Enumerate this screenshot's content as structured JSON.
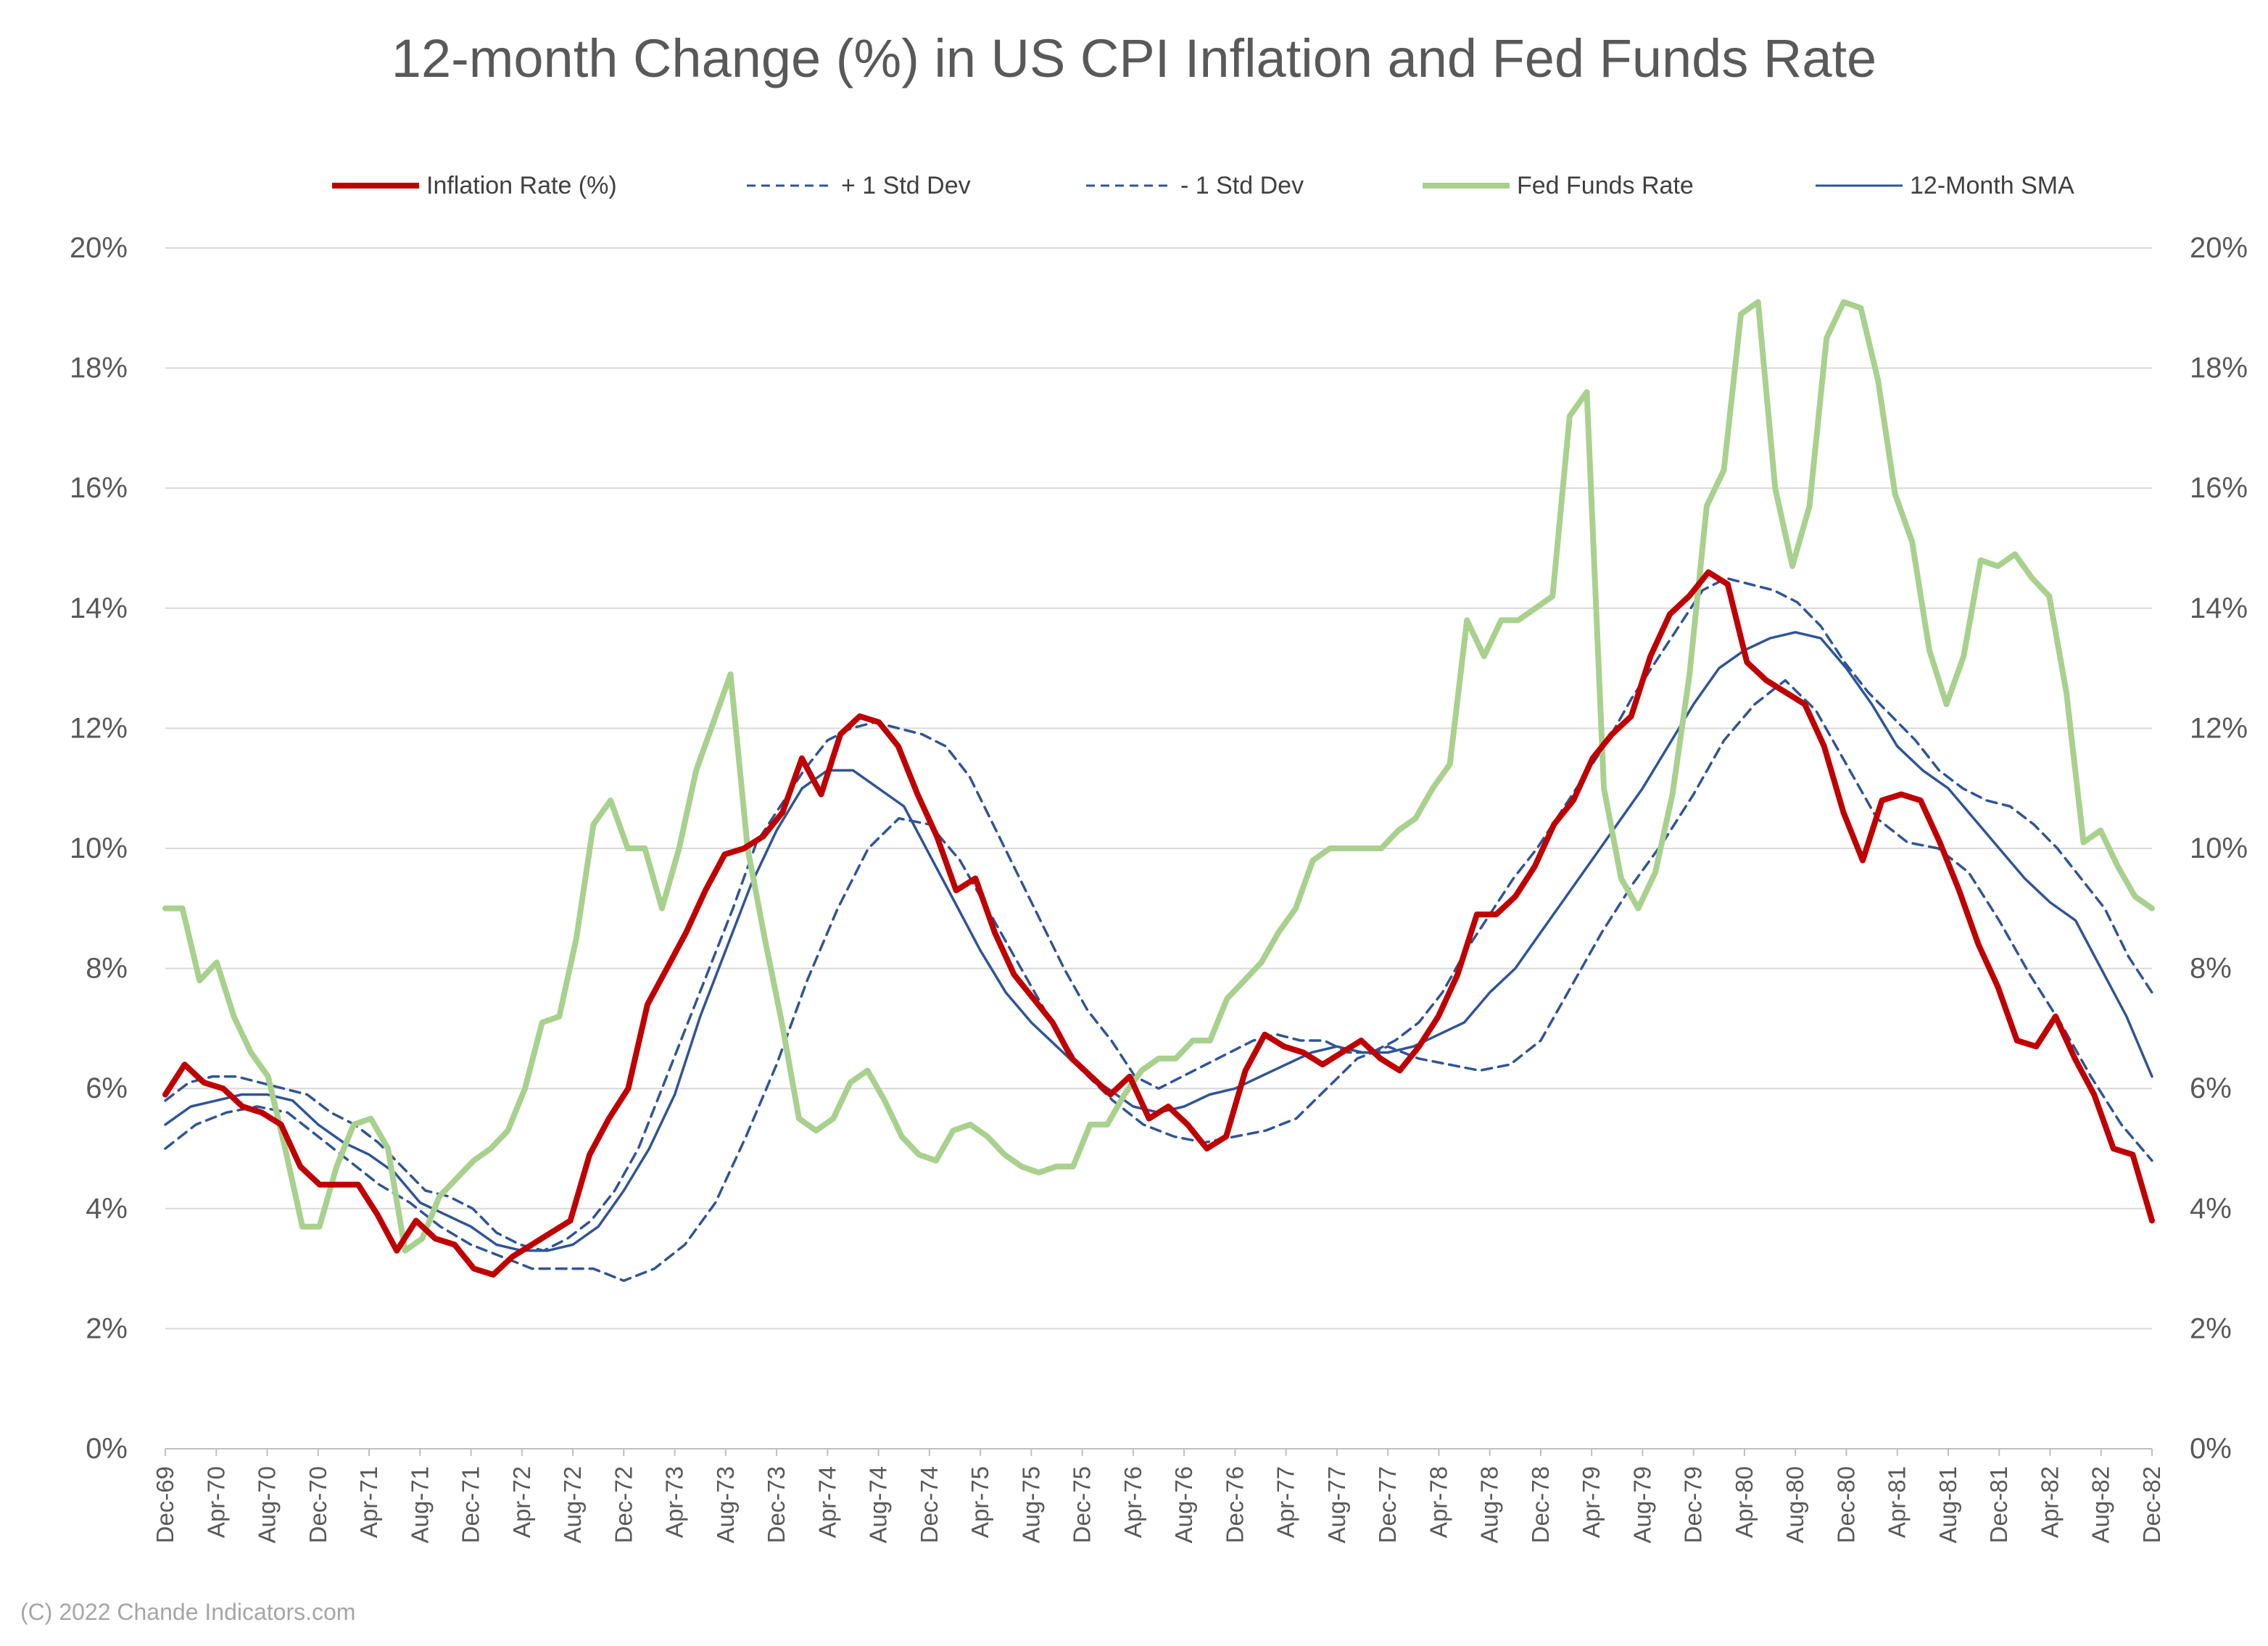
{
  "chart_data": {
    "type": "line",
    "title": "12-month Change (%) in US CPI Inflation and Fed Funds Rate",
    "xlabel": "",
    "ylabel": "",
    "ylim": [
      0,
      20
    ],
    "y_tick_labels": [
      "0%",
      "2%",
      "4%",
      "6%",
      "8%",
      "10%",
      "12%",
      "14%",
      "16%",
      "18%",
      "20%"
    ],
    "x_tick_labels": [
      "Dec-69",
      "Apr-70",
      "Aug-70",
      "Dec-70",
      "Apr-71",
      "Aug-71",
      "Dec-71",
      "Apr-72",
      "Aug-72",
      "Dec-72",
      "Apr-73",
      "Aug-73",
      "Dec-73",
      "Apr-74",
      "Aug-74",
      "Dec-74",
      "Apr-75",
      "Aug-75",
      "Dec-75",
      "Apr-76",
      "Aug-76",
      "Dec-76",
      "Apr-77",
      "Aug-77",
      "Dec-77",
      "Apr-78",
      "Aug-78",
      "Dec-78",
      "Apr-79",
      "Aug-79",
      "Dec-79",
      "Apr-80",
      "Aug-80",
      "Dec-80",
      "Apr-81",
      "Aug-81",
      "Dec-81",
      "Apr-82",
      "Aug-82",
      "Dec-82"
    ],
    "grid": true,
    "secondary_axis": true,
    "legend_position": "top",
    "series": [
      {
        "name": "Inflation Rate (%)",
        "color": "#c00000",
        "style": "solid-thick",
        "values": [
          5.9,
          6.4,
          6.1,
          6.0,
          5.7,
          5.6,
          5.4,
          4.7,
          4.4,
          4.4,
          4.4,
          3.9,
          3.3,
          3.8,
          3.5,
          3.4,
          3.0,
          2.9,
          3.2,
          3.4,
          3.6,
          3.8,
          4.9,
          5.5,
          6.0,
          7.4,
          8.0,
          8.6,
          9.3,
          9.9,
          10.0,
          10.2,
          10.6,
          11.5,
          10.9,
          11.9,
          12.2,
          12.1,
          11.7,
          10.9,
          10.2,
          9.3,
          9.5,
          8.6,
          7.9,
          7.5,
          7.1,
          6.5,
          6.2,
          5.9,
          6.2,
          5.5,
          5.7,
          5.4,
          5.0,
          5.2,
          6.3,
          6.9,
          6.7,
          6.6,
          6.4,
          6.6,
          6.8,
          6.5,
          6.3,
          6.7,
          7.2,
          7.9,
          8.9,
          8.9,
          9.2,
          9.7,
          10.4,
          10.8,
          11.5,
          11.9,
          12.2,
          13.2,
          13.9,
          14.2,
          14.6,
          14.4,
          13.1,
          12.8,
          12.6,
          12.4,
          11.7,
          10.6,
          9.8,
          10.8,
          10.9,
          10.8,
          10.1,
          9.3,
          8.4,
          7.7,
          6.8,
          6.7,
          7.2,
          6.5,
          5.9,
          5.0,
          4.9,
          3.8
        ]
      },
      {
        "name": "+ 1 Std Dev",
        "color": "#2f5597",
        "style": "dashed",
        "values": [
          5.8,
          6.1,
          6.2,
          6.2,
          6.1,
          6.0,
          5.9,
          5.6,
          5.4,
          5.1,
          4.7,
          4.3,
          4.2,
          4.0,
          3.6,
          3.4,
          3.3,
          3.5,
          3.8,
          4.3,
          5.0,
          6.0,
          7.0,
          8.0,
          9.0,
          10.1,
          10.7,
          11.3,
          11.8,
          12.0,
          12.1,
          12.0,
          11.9,
          11.7,
          11.2,
          10.4,
          9.6,
          8.8,
          8.0,
          7.3,
          6.8,
          6.2,
          6.0,
          6.2,
          6.4,
          6.6,
          6.8,
          6.9,
          6.8,
          6.8,
          6.6,
          6.6,
          6.8,
          7.1,
          7.6,
          8.3,
          8.9,
          9.5,
          10.0,
          10.6,
          11.2,
          11.8,
          12.5,
          13.1,
          13.7,
          14.3,
          14.5,
          14.4,
          14.3,
          14.1,
          13.7,
          13.1,
          12.6,
          12.2,
          11.8,
          11.3,
          11.0,
          10.8,
          10.7,
          10.4,
          10.0,
          9.5,
          9.0,
          8.2,
          7.6
        ]
      },
      {
        "name": "- 1 Std Dev",
        "color": "#2f5597",
        "style": "dashed",
        "values": [
          5.0,
          5.4,
          5.6,
          5.7,
          5.6,
          5.2,
          4.8,
          4.4,
          4.1,
          3.7,
          3.4,
          3.2,
          3.0,
          3.0,
          3.0,
          2.8,
          3.0,
          3.4,
          4.1,
          5.2,
          6.4,
          7.8,
          9.0,
          10.0,
          10.5,
          10.4,
          9.8,
          8.9,
          8.0,
          7.1,
          6.3,
          5.8,
          5.4,
          5.2,
          5.1,
          5.2,
          5.3,
          5.5,
          6.0,
          6.5,
          6.7,
          6.5,
          6.4,
          6.3,
          6.4,
          6.8,
          7.7,
          8.6,
          9.4,
          10.1,
          10.9,
          11.8,
          12.4,
          12.8,
          12.3,
          11.4,
          10.5,
          10.1,
          10.0,
          9.6,
          8.8,
          7.9,
          7.1,
          6.2,
          5.4,
          4.8
        ]
      },
      {
        "name": "Fed Funds Rate",
        "color": "#a9d18e",
        "style": "solid-thick",
        "values": [
          9.0,
          9.0,
          7.8,
          8.1,
          7.2,
          6.6,
          6.2,
          5.0,
          3.7,
          3.7,
          4.7,
          5.4,
          5.5,
          5.0,
          3.3,
          3.5,
          4.2,
          4.5,
          4.8,
          5.0,
          5.3,
          6.0,
          7.1,
          7.2,
          8.5,
          10.4,
          10.8,
          10.0,
          10.0,
          9.0,
          10.0,
          11.3,
          12.1,
          12.9,
          10.0,
          8.5,
          7.1,
          5.5,
          5.3,
          5.5,
          6.1,
          6.3,
          5.8,
          5.2,
          4.9,
          4.8,
          5.3,
          5.4,
          5.2,
          4.9,
          4.7,
          4.6,
          4.7,
          4.7,
          5.4,
          5.4,
          5.9,
          6.3,
          6.5,
          6.5,
          6.8,
          6.8,
          7.5,
          7.8,
          8.1,
          8.6,
          9.0,
          9.8,
          10.0,
          10.0,
          10.0,
          10.0,
          10.3,
          10.5,
          11.0,
          11.4,
          13.8,
          13.2,
          13.8,
          13.8,
          14.0,
          14.2,
          17.2,
          17.6,
          11.0,
          9.5,
          9.0,
          9.6,
          10.9,
          12.9,
          15.7,
          16.3,
          18.9,
          19.1,
          16.0,
          14.7,
          15.7,
          18.5,
          19.1,
          19.0,
          17.8,
          15.9,
          15.1,
          13.3,
          12.4,
          13.2,
          14.8,
          14.7,
          14.9,
          14.5,
          14.2,
          12.6,
          10.1,
          10.3,
          9.7,
          9.2,
          9.0
        ]
      },
      {
        "name": "12-Month SMA",
        "color": "#2f5597",
        "style": "solid-thin",
        "values": [
          5.4,
          5.7,
          5.8,
          5.9,
          5.9,
          5.8,
          5.4,
          5.1,
          4.9,
          4.6,
          4.1,
          3.9,
          3.7,
          3.4,
          3.3,
          3.3,
          3.4,
          3.7,
          4.3,
          5.0,
          5.9,
          7.2,
          8.3,
          9.4,
          10.3,
          11.0,
          11.3,
          11.3,
          11.0,
          10.7,
          9.9,
          9.1,
          8.3,
          7.6,
          7.1,
          6.7,
          6.3,
          6.0,
          5.7,
          5.6,
          5.7,
          5.9,
          6.0,
          6.2,
          6.4,
          6.6,
          6.7,
          6.6,
          6.6,
          6.7,
          6.9,
          7.1,
          7.6,
          8.0,
          8.6,
          9.2,
          9.8,
          10.4,
          11.0,
          11.7,
          12.4,
          13.0,
          13.3,
          13.5,
          13.6,
          13.5,
          13.0,
          12.4,
          11.7,
          11.3,
          11.0,
          10.5,
          10.0,
          9.5,
          9.1,
          8.8,
          8.0,
          7.2,
          6.2
        ]
      }
    ],
    "footer": "(C) 2022 Chande Indicators.com"
  },
  "legend": [
    {
      "label": "Inflation Rate (%)",
      "color": "#c00000",
      "dash": "",
      "width": 8
    },
    {
      "label": "+ 1 Std Dev",
      "color": "#2f5597",
      "dash": "12,8",
      "width": 3
    },
    {
      "label": "- 1 Std Dev",
      "color": "#2f5597",
      "dash": "12,8",
      "width": 3
    },
    {
      "label": "Fed Funds Rate",
      "color": "#a9d18e",
      "dash": "",
      "width": 8
    },
    {
      "label": "12-Month SMA",
      "color": "#2f5597",
      "dash": "",
      "width": 3
    }
  ]
}
